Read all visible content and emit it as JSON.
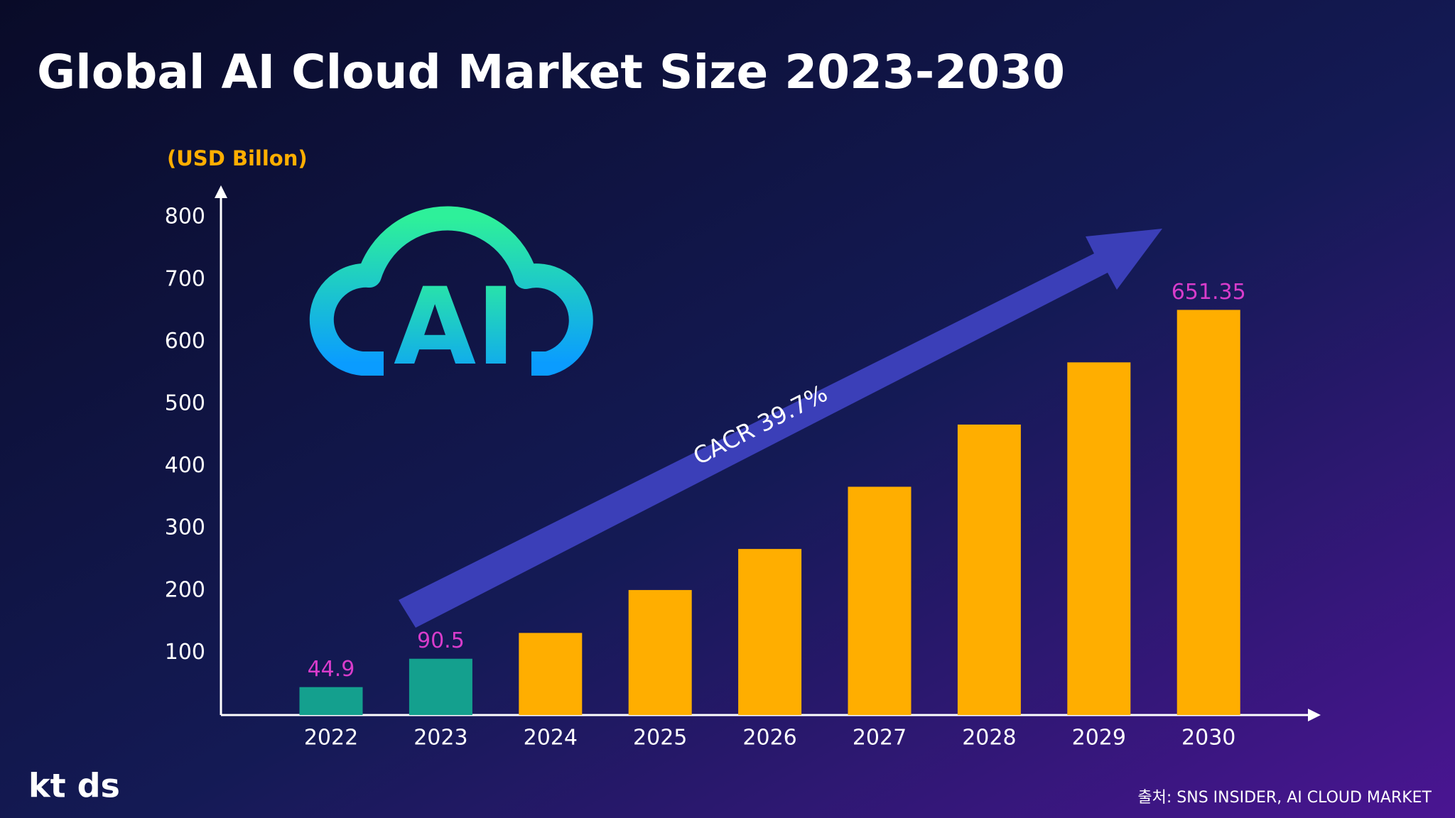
{
  "chart_data": {
    "type": "bar",
    "title": "Global AI Cloud Market Size 2023-2030",
    "y_axis_label": "(USD Billon)",
    "categories": [
      "2022",
      "2023",
      "2024",
      "2025",
      "2026",
      "2027",
      "2028",
      "2029",
      "2030"
    ],
    "values": [
      44.9,
      90.5,
      132,
      201,
      267,
      367,
      467,
      567,
      651.35
    ],
    "value_labels": [
      "44.9",
      "90.5",
      null,
      null,
      null,
      null,
      null,
      null,
      "651.35"
    ],
    "colors": [
      "#14a08e",
      "#14a08e",
      "#ffae00",
      "#ffae00",
      "#ffae00",
      "#ffae00",
      "#ffae00",
      "#ffae00",
      "#ffae00"
    ],
    "label_color": "#d83ccb",
    "ylim": [
      0,
      840
    ],
    "yticks": [
      100,
      200,
      300,
      400,
      500,
      600,
      700,
      800
    ],
    "grid": false,
    "annotation": "CACR 39.7%",
    "icon_text": "AI",
    "logo": "kt ds",
    "source": "출처: SNS INSIDER, AI CLOUD MARKET"
  }
}
